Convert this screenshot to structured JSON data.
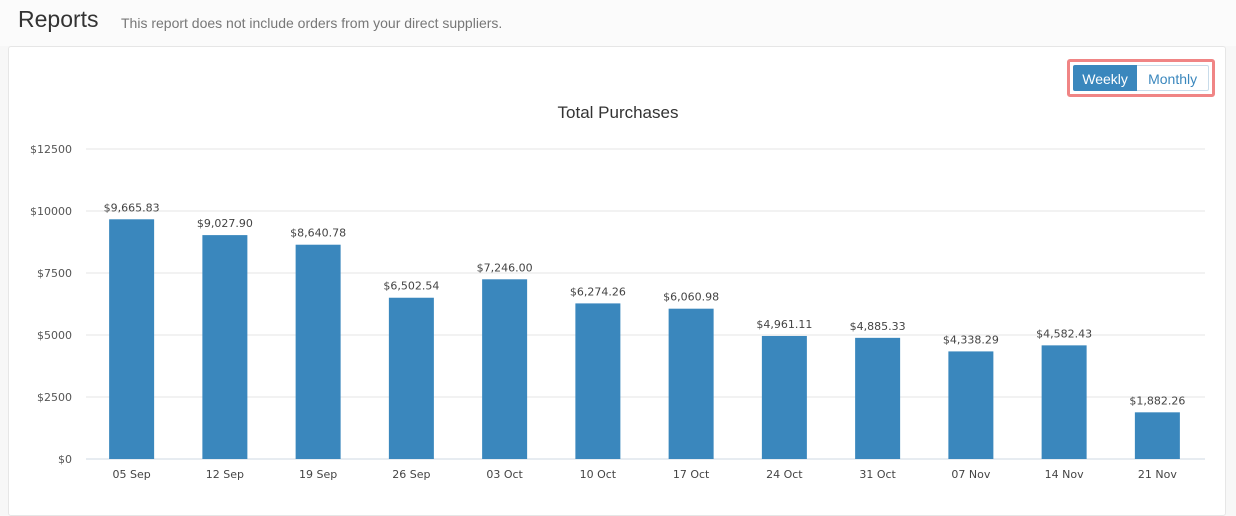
{
  "page": {
    "title": "Reports",
    "subtitle": "This report does not include orders from your direct suppliers."
  },
  "toggle": {
    "weekly_label": "Weekly",
    "monthly_label": "Monthly",
    "selected": "Weekly"
  },
  "colors": {
    "bar": "#3a87bd",
    "highlight_border": "#f08585"
  },
  "chart_data": {
    "type": "bar",
    "title": "Total Purchases",
    "xlabel": "",
    "ylabel": "",
    "categories": [
      "05 Sep",
      "12 Sep",
      "19 Sep",
      "26 Sep",
      "03 Oct",
      "10 Oct",
      "17 Oct",
      "24 Oct",
      "31 Oct",
      "07 Nov",
      "14 Nov",
      "21 Nov"
    ],
    "values": [
      9665.83,
      9027.9,
      8640.78,
      6502.54,
      7246.0,
      6274.26,
      6060.98,
      4961.11,
      4885.33,
      4338.29,
      4582.43,
      1882.26
    ],
    "data_labels": [
      "$9,665.83",
      "$9,027.90",
      "$8,640.78",
      "$6,502.54",
      "$7,246.00",
      "$6,274.26",
      "$6,060.98",
      "$4,961.11",
      "$4,885.33",
      "$4,338.29",
      "$4,582.43",
      "$1,882.26"
    ],
    "ylim": [
      0,
      12500
    ],
    "yticks": [
      0,
      2500,
      5000,
      7500,
      10000,
      12500
    ],
    "ytick_labels": [
      "$0",
      "$2500",
      "$5000",
      "$7500",
      "$10000",
      "$12500"
    ],
    "grid": true
  }
}
